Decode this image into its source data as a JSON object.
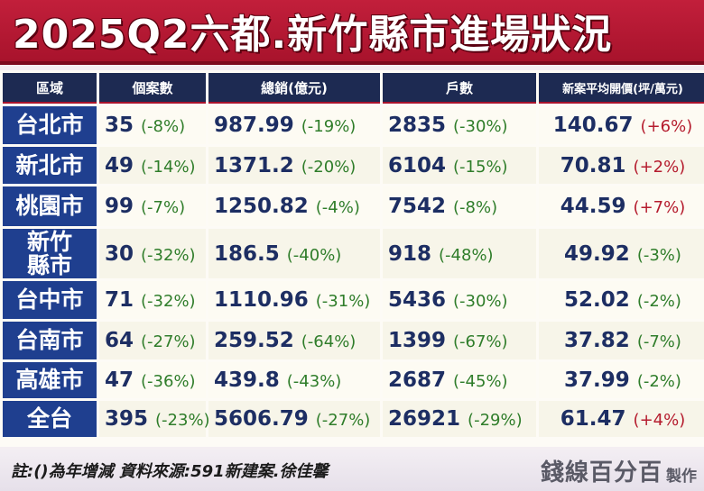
{
  "title": "2025Q2六都.新竹縣市進場狀況",
  "headers": [
    "區域",
    "個案數",
    "總銷(億元)",
    "戶數",
    "新案平均開價(坪/萬元)"
  ],
  "rows": [
    {
      "region": "台北市",
      "cases": "35",
      "cases_chg": "(-8%)",
      "sales": "987.99",
      "sales_chg": "(-19%)",
      "units": "2835",
      "units_chg": "(-30%)",
      "price": "140.67",
      "price_chg": "(+6%)"
    },
    {
      "region": "新北市",
      "cases": "49",
      "cases_chg": "(-14%)",
      "sales": "1371.2",
      "sales_chg": "(-20%)",
      "units": "6104",
      "units_chg": "(-15%)",
      "price": "70.81",
      "price_chg": "(+2%)"
    },
    {
      "region": "桃園市",
      "cases": "99",
      "cases_chg": "(-7%)",
      "sales": "1250.82",
      "sales_chg": "(-4%)",
      "units": "7542",
      "units_chg": "(-8%)",
      "price": "44.59",
      "price_chg": "(+7%)"
    },
    {
      "region": "新竹縣市",
      "cases": "30",
      "cases_chg": "(-32%)",
      "sales": "186.5",
      "sales_chg": "(-40%)",
      "units": "918",
      "units_chg": "(-48%)",
      "price": "49.92",
      "price_chg": "(-3%)"
    },
    {
      "region": "台中市",
      "cases": "71",
      "cases_chg": "(-32%)",
      "sales": "1110.96",
      "sales_chg": "(-31%)",
      "units": "5436",
      "units_chg": "(-30%)",
      "price": "52.02",
      "price_chg": "(-2%)"
    },
    {
      "region": "台南市",
      "cases": "64",
      "cases_chg": "(-27%)",
      "sales": "259.52",
      "sales_chg": "(-64%)",
      "units": "1399",
      "units_chg": "(-67%)",
      "price": "37.82",
      "price_chg": "(-7%)"
    },
    {
      "region": "高雄市",
      "cases": "47",
      "cases_chg": "(-36%)",
      "sales": "439.8",
      "sales_chg": "(-43%)",
      "units": "2687",
      "units_chg": "(-45%)",
      "price": "37.99",
      "price_chg": "(-2%)"
    },
    {
      "region": "全台",
      "cases": "395",
      "cases_chg": "(-23%)",
      "sales": "5606.79",
      "sales_chg": "(-27%)",
      "units": "26921",
      "units_chg": "(-29%)",
      "price": "61.47",
      "price_chg": "(+4%)"
    }
  ],
  "footer_note": "註:()為年增減 資料來源:591新建案.徐佳馨",
  "logo": {
    "main": "錢線百分百",
    "sub": "製作"
  },
  "colors": {
    "title_red": "#a8132c",
    "header_navy": "#1d2a52",
    "region_blue": "#1f3f8f",
    "negative_green": "#2f7d2a",
    "positive_red": "#b51c2e",
    "value_navy": "#1d2e63"
  }
}
